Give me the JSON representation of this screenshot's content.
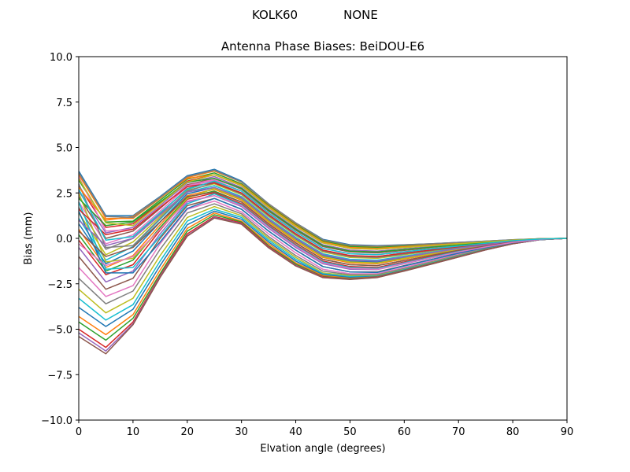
{
  "suptitle_left": "KOLK60",
  "suptitle_right": "NONE",
  "chart_data": {
    "type": "line",
    "title": "Antenna Phase Biases: BeiDOU-E6",
    "xlabel": "Elvation angle (degrees)",
    "ylabel": "Bias (mm)",
    "xlim": [
      0,
      90
    ],
    "ylim": [
      -10,
      10
    ],
    "xticks": [
      0,
      10,
      20,
      30,
      40,
      50,
      60,
      70,
      80,
      90
    ],
    "yticks": [
      -10.0,
      -7.5,
      -5.0,
      -2.5,
      0.0,
      2.5,
      5.0,
      7.5,
      10.0
    ],
    "xtick_labels": [
      "0",
      "10",
      "20",
      "30",
      "40",
      "50",
      "60",
      "70",
      "80",
      "90"
    ],
    "ytick_labels": [
      "−10.0",
      "−7.5",
      "−5.0",
      "−2.5",
      "0.0",
      "2.5",
      "5.0",
      "7.5",
      "10.0"
    ],
    "grid": false,
    "legend": "none",
    "x": [
      0,
      5,
      10,
      15,
      20,
      25,
      30,
      35,
      40,
      45,
      50,
      55,
      60,
      65,
      70,
      75,
      80,
      85,
      90
    ],
    "palette": [
      "#1f77b4",
      "#ff7f0e",
      "#2ca02c",
      "#d62728",
      "#9467bd",
      "#8c564b",
      "#e377c2",
      "#7f7f7f",
      "#bcbd22",
      "#17becf"
    ],
    "series": [
      {
        "values": [
          3.7,
          1.25,
          1.25,
          2.3,
          3.45,
          3.8,
          3.15,
          1.9,
          0.85,
          -0.05,
          -0.35,
          -0.4,
          -0.35,
          -0.3,
          -0.22,
          -0.15,
          -0.08,
          -0.02,
          0.0
        ]
      },
      {
        "values": [
          3.5,
          1.1,
          1.1,
          2.2,
          3.35,
          3.7,
          3.1,
          1.85,
          0.8,
          -0.1,
          -0.4,
          -0.45,
          -0.38,
          -0.32,
          -0.24,
          -0.16,
          -0.09,
          -0.02,
          0.0
        ]
      },
      {
        "values": [
          3.2,
          0.9,
          0.95,
          2.1,
          3.25,
          3.6,
          3.0,
          1.8,
          0.75,
          -0.15,
          -0.45,
          -0.5,
          -0.42,
          -0.35,
          -0.26,
          -0.17,
          -0.09,
          -0.02,
          0.0
        ]
      },
      {
        "values": [
          2.9,
          0.6,
          0.8,
          1.95,
          3.15,
          3.5,
          2.9,
          1.7,
          0.65,
          -0.25,
          -0.55,
          -0.6,
          -0.5,
          -0.4,
          -0.3,
          -0.2,
          -0.1,
          -0.03,
          0.0
        ]
      },
      {
        "values": [
          2.6,
          0.3,
          0.6,
          1.8,
          3.05,
          3.4,
          2.8,
          1.6,
          0.55,
          -0.35,
          -0.65,
          -0.7,
          -0.58,
          -0.46,
          -0.34,
          -0.22,
          -0.11,
          -0.03,
          0.0
        ]
      },
      {
        "values": [
          2.3,
          0.0,
          0.4,
          1.65,
          2.95,
          3.3,
          2.7,
          1.5,
          0.45,
          -0.45,
          -0.75,
          -0.8,
          -0.66,
          -0.52,
          -0.38,
          -0.24,
          -0.12,
          -0.03,
          0.0
        ]
      },
      {
        "values": [
          2.0,
          -0.3,
          0.2,
          1.5,
          2.85,
          3.2,
          2.6,
          1.4,
          0.35,
          -0.55,
          -0.85,
          -0.9,
          -0.74,
          -0.58,
          -0.42,
          -0.27,
          -0.13,
          -0.04,
          0.0
        ]
      },
      {
        "values": [
          1.7,
          -0.6,
          0.0,
          1.35,
          2.75,
          3.1,
          2.5,
          1.3,
          0.25,
          -0.65,
          -0.95,
          -1.0,
          -0.82,
          -0.64,
          -0.46,
          -0.29,
          -0.14,
          -0.04,
          0.0
        ]
      },
      {
        "values": [
          1.4,
          -0.9,
          -0.2,
          1.2,
          2.65,
          3.0,
          2.4,
          1.2,
          0.15,
          -0.75,
          -1.05,
          -1.1,
          -0.9,
          -0.7,
          -0.5,
          -0.32,
          -0.16,
          -0.04,
          0.0
        ]
      },
      {
        "values": [
          1.1,
          -1.2,
          -0.45,
          1.05,
          2.55,
          2.9,
          2.3,
          1.1,
          0.05,
          -0.85,
          -1.15,
          -1.2,
          -0.98,
          -0.76,
          -0.54,
          -0.34,
          -0.17,
          -0.05,
          0.0
        ]
      },
      {
        "values": [
          0.8,
          -1.4,
          -0.7,
          0.9,
          2.45,
          2.8,
          2.2,
          1.0,
          -0.05,
          -0.95,
          -1.25,
          -1.3,
          -1.06,
          -0.82,
          -0.58,
          -0.37,
          -0.18,
          -0.05,
          0.0
        ]
      },
      {
        "values": [
          0.5,
          -1.6,
          -0.95,
          0.75,
          2.35,
          2.7,
          2.1,
          0.9,
          -0.15,
          -1.05,
          -1.35,
          -1.4,
          -1.14,
          -0.88,
          -0.62,
          -0.39,
          -0.19,
          -0.05,
          0.0
        ]
      },
      {
        "values": [
          0.2,
          -1.8,
          -1.2,
          0.6,
          2.25,
          2.6,
          2.0,
          0.8,
          -0.25,
          -1.15,
          -1.45,
          -1.5,
          -1.22,
          -0.94,
          -0.66,
          -0.42,
          -0.2,
          -0.06,
          0.0
        ]
      },
      {
        "values": [
          -0.1,
          -2.0,
          -1.45,
          0.45,
          2.15,
          2.5,
          1.9,
          0.7,
          -0.35,
          -1.25,
          -1.55,
          -1.6,
          -1.3,
          -1.0,
          -0.7,
          -0.44,
          -0.21,
          -0.06,
          0.0
        ]
      },
      {
        "values": [
          -0.5,
          -2.4,
          -1.8,
          0.25,
          2.0,
          2.35,
          1.75,
          0.55,
          -0.5,
          -1.4,
          -1.7,
          -1.72,
          -1.4,
          -1.08,
          -0.76,
          -0.47,
          -0.23,
          -0.06,
          0.0
        ]
      },
      {
        "values": [
          -1.0,
          -2.8,
          -2.2,
          0.0,
          1.8,
          2.2,
          1.6,
          0.4,
          -0.65,
          -1.55,
          -1.85,
          -1.85,
          -1.5,
          -1.16,
          -0.82,
          -0.51,
          -0.24,
          -0.07,
          0.0
        ]
      },
      {
        "values": [
          -1.6,
          -3.2,
          -2.6,
          -0.3,
          1.6,
          2.05,
          1.45,
          0.25,
          -0.8,
          -1.7,
          -1.95,
          -1.95,
          -1.6,
          -1.24,
          -0.88,
          -0.55,
          -0.26,
          -0.07,
          0.0
        ]
      },
      {
        "values": [
          -2.2,
          -3.6,
          -2.9,
          -0.6,
          1.4,
          1.9,
          1.35,
          0.1,
          -0.95,
          -1.8,
          -2.0,
          -2.0,
          -1.66,
          -1.3,
          -0.92,
          -0.57,
          -0.27,
          -0.07,
          0.0
        ]
      },
      {
        "values": [
          -2.8,
          -4.1,
          -3.3,
          -0.95,
          1.15,
          1.75,
          1.25,
          0.0,
          -1.05,
          -1.9,
          -2.05,
          -2.05,
          -1.7,
          -1.33,
          -0.95,
          -0.59,
          -0.28,
          -0.07,
          0.0
        ]
      },
      {
        "values": [
          -3.3,
          -4.5,
          -3.65,
          -1.25,
          0.95,
          1.6,
          1.15,
          -0.1,
          -1.15,
          -1.95,
          -2.1,
          -2.08,
          -1.72,
          -1.35,
          -0.97,
          -0.6,
          -0.28,
          -0.07,
          0.0
        ]
      },
      {
        "values": [
          -3.8,
          -4.85,
          -3.9,
          -1.5,
          0.75,
          1.5,
          1.05,
          -0.2,
          -1.25,
          -2.0,
          -2.15,
          -2.1,
          -1.74,
          -1.37,
          -0.98,
          -0.61,
          -0.29,
          -0.07,
          0.0
        ]
      },
      {
        "values": [
          -4.3,
          -5.3,
          -4.2,
          -1.75,
          0.55,
          1.4,
          0.95,
          -0.3,
          -1.35,
          -2.05,
          -2.2,
          -2.12,
          -1.76,
          -1.39,
          -1.0,
          -0.62,
          -0.29,
          -0.07,
          0.0
        ]
      },
      {
        "values": [
          -4.6,
          -5.6,
          -4.4,
          -1.95,
          0.4,
          1.3,
          0.9,
          -0.4,
          -1.42,
          -2.1,
          -2.22,
          -2.13,
          -1.77,
          -1.4,
          -1.01,
          -0.62,
          -0.29,
          -0.07,
          0.0
        ]
      },
      {
        "values": [
          -5.0,
          -6.0,
          -4.6,
          -2.05,
          0.25,
          1.2,
          0.85,
          -0.45,
          -1.48,
          -2.12,
          -2.24,
          -2.14,
          -1.78,
          -1.41,
          -1.02,
          -0.63,
          -0.3,
          -0.07,
          0.0
        ]
      },
      {
        "values": [
          -5.2,
          -6.2,
          -4.7,
          -2.1,
          0.15,
          1.15,
          0.8,
          -0.5,
          -1.5,
          -2.15,
          -2.25,
          -2.15,
          -1.79,
          -1.42,
          -1.02,
          -0.63,
          -0.3,
          -0.07,
          0.0
        ]
      },
      {
        "values": [
          -5.4,
          -6.35,
          -4.75,
          -2.15,
          0.12,
          1.12,
          0.78,
          -0.52,
          -1.52,
          -2.16,
          -2.26,
          -2.16,
          -1.8,
          -1.42,
          -1.03,
          -0.63,
          -0.3,
          -0.07,
          0.0
        ]
      },
      {
        "values": [
          3.4,
          0.4,
          0.5,
          1.7,
          2.9,
          3.25,
          2.75,
          1.55,
          0.5,
          -0.4,
          -0.7,
          -0.75,
          -0.62,
          -0.5,
          -0.36,
          -0.23,
          -0.11,
          -0.03,
          0.0
        ]
      },
      {
        "values": [
          3.0,
          -0.5,
          -0.4,
          1.1,
          2.6,
          3.05,
          2.45,
          1.25,
          0.2,
          -0.7,
          -1.0,
          -1.05,
          -0.86,
          -0.67,
          -0.48,
          -0.3,
          -0.15,
          -0.04,
          0.0
        ]
      },
      {
        "values": [
          2.5,
          -1.3,
          -1.1,
          0.5,
          2.2,
          2.75,
          2.15,
          0.95,
          -0.1,
          -1.0,
          -1.3,
          -1.35,
          -1.1,
          -0.85,
          -0.6,
          -0.38,
          -0.18,
          -0.05,
          0.0
        ]
      },
      {
        "values": [
          2.0,
          -1.7,
          -1.6,
          0.1,
          1.9,
          2.45,
          1.85,
          0.65,
          -0.4,
          -1.3,
          -1.6,
          -1.65,
          -1.34,
          -1.03,
          -0.72,
          -0.45,
          -0.22,
          -0.06,
          0.0
        ]
      },
      {
        "values": [
          1.5,
          -1.9,
          -1.9,
          -0.2,
          1.65,
          2.2,
          1.6,
          0.4,
          -0.65,
          -1.55,
          -1.85,
          -1.88,
          -1.52,
          -1.17,
          -0.82,
          -0.51,
          -0.24,
          -0.07,
          0.0
        ]
      },
      {
        "values": [
          2.8,
          1.0,
          1.2,
          2.25,
          3.3,
          3.5,
          2.95,
          1.75,
          0.7,
          -0.2,
          -0.5,
          -0.55,
          -0.46,
          -0.37,
          -0.28,
          -0.18,
          -0.09,
          -0.02,
          0.0
        ]
      },
      {
        "values": [
          2.2,
          0.7,
          0.9,
          2.0,
          3.1,
          3.3,
          2.75,
          1.55,
          0.5,
          -0.4,
          -0.7,
          -0.75,
          -0.62,
          -0.49,
          -0.36,
          -0.23,
          -0.11,
          -0.03,
          0.0
        ]
      },
      {
        "values": [
          1.6,
          0.2,
          0.5,
          1.7,
          2.85,
          3.05,
          2.5,
          1.3,
          0.25,
          -0.65,
          -0.95,
          -1.0,
          -0.82,
          -0.64,
          -0.46,
          -0.29,
          -0.14,
          -0.04,
          0.0
        ]
      },
      {
        "values": [
          1.0,
          -0.4,
          0.0,
          1.3,
          2.55,
          2.8,
          2.25,
          1.05,
          0.0,
          -0.9,
          -1.2,
          -1.25,
          -1.02,
          -0.79,
          -0.56,
          -0.35,
          -0.17,
          -0.05,
          0.0
        ]
      },
      {
        "values": [
          0.4,
          -1.0,
          -0.5,
          0.9,
          2.3,
          2.55,
          2.0,
          0.8,
          -0.25,
          -1.15,
          -1.45,
          -1.5,
          -1.22,
          -0.94,
          -0.66,
          -0.42,
          -0.2,
          -0.06,
          0.0
        ]
      },
      {
        "values": [
          -0.3,
          -1.5,
          -1.0,
          0.5,
          2.05,
          2.35,
          1.8,
          0.6,
          -0.45,
          -1.35,
          -1.65,
          -1.7,
          -1.38,
          -1.07,
          -0.75,
          -0.47,
          -0.22,
          -0.06,
          0.0
        ]
      },
      {
        "values": [
          3.6,
          1.2,
          1.15,
          2.25,
          3.4,
          3.75,
          3.1,
          1.9,
          0.85,
          -0.08,
          -0.38,
          -0.42,
          -0.36,
          -0.3,
          -0.22,
          -0.15,
          -0.08,
          -0.02,
          0.0
        ]
      },
      {
        "values": [
          3.3,
          0.85,
          0.7,
          1.9,
          3.1,
          3.5,
          2.9,
          1.7,
          0.65,
          -0.25,
          -0.55,
          -0.6,
          -0.5,
          -0.4,
          -0.3,
          -0.19,
          -0.1,
          -0.03,
          0.0
        ]
      },
      {
        "values": [
          2.7,
          -0.1,
          0.1,
          1.4,
          2.7,
          3.15,
          2.6,
          1.4,
          0.35,
          -0.55,
          -0.85,
          -0.9,
          -0.74,
          -0.58,
          -0.42,
          -0.27,
          -0.13,
          -0.04,
          0.0
        ]
      }
    ]
  }
}
